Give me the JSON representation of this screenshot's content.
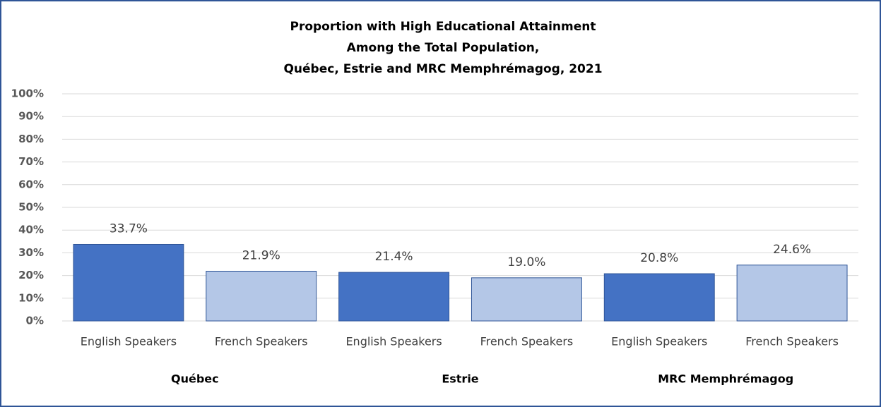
{
  "chart_data": {
    "type": "bar",
    "title": [
      "Proportion with High Educational  Attainment",
      "Among the Total Population,",
      "Québec, Estrie and MRC Memphrémagog, 2021"
    ],
    "categories": [
      "English Speakers",
      "French Speakers",
      "English Speakers",
      "French Speakers",
      "English Speakers",
      "French Speakers"
    ],
    "group_labels": [
      "Québec",
      "Estrie",
      "MRC Memphrémagog"
    ],
    "values": [
      33.7,
      21.9,
      21.4,
      19.0,
      20.8,
      24.6
    ],
    "value_labels": [
      "33.7%",
      "21.9%",
      "21.4%",
      "19.0%",
      "20.8%",
      "24.6%"
    ],
    "colors": [
      "#4472c4",
      "#b4c7e7",
      "#4472c4",
      "#b4c7e7",
      "#4472c4",
      "#b4c7e7"
    ],
    "ylim": [
      0,
      100
    ],
    "yticks": [
      {
        "value": 0,
        "label": "0%"
      },
      {
        "value": 10,
        "label": "10%"
      },
      {
        "value": 20,
        "label": "20%"
      },
      {
        "value": 30,
        "label": "30%"
      },
      {
        "value": 40,
        "label": "40%"
      },
      {
        "value": 50,
        "label": "50%"
      },
      {
        "value": 60,
        "label": "60%"
      },
      {
        "value": 70,
        "label": "70%"
      },
      {
        "value": 80,
        "label": "80%"
      },
      {
        "value": 90,
        "label": "90%"
      },
      {
        "value": 100,
        "label": "100%"
      }
    ],
    "grid": true
  }
}
